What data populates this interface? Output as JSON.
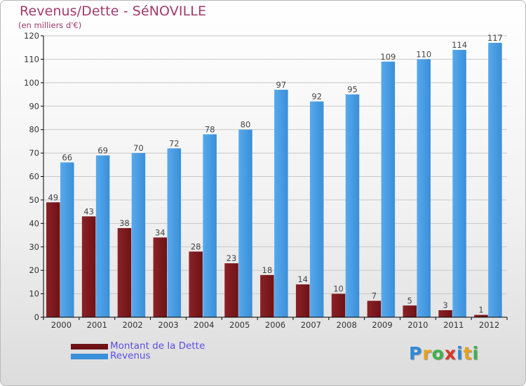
{
  "title": "Revenus/Dette - SéNOVILLE",
  "subtitle": "(en milliers d'€)",
  "colors": {
    "debt": "#6e1216",
    "debt_light": "#8a2227",
    "revenue": "#3a8fd8",
    "revenue_light": "#58a9ec",
    "title": "#a23a6c",
    "legend_text": "#5b4ee0",
    "axis": "#000000",
    "grid": "#c8c8c8"
  },
  "legend": {
    "debt_label": "Montant de la Dette",
    "revenue_label": "Revenus"
  },
  "logo": {
    "letters": [
      "P",
      "r",
      "o",
      "x",
      "i",
      "t",
      "i"
    ],
    "colors": [
      "#2e8ad8",
      "#e8a21a",
      "#3fb24a",
      "#d9362b",
      "#2e8ad8",
      "#e8a21a",
      "#3fb24a"
    ]
  },
  "chart_data": {
    "type": "bar",
    "categories": [
      "2000",
      "2001",
      "2002",
      "2003",
      "2004",
      "2005",
      "2006",
      "2007",
      "2008",
      "2009",
      "2010",
      "2011",
      "2012"
    ],
    "series": [
      {
        "name": "Montant de la Dette",
        "values": [
          49,
          43,
          38,
          34,
          28,
          23,
          18,
          14,
          10,
          7,
          5,
          3,
          1
        ]
      },
      {
        "name": "Revenus",
        "values": [
          66,
          69,
          70,
          72,
          78,
          80,
          97,
          92,
          95,
          109,
          110,
          114,
          117
        ]
      }
    ],
    "ylim": [
      0,
      120
    ],
    "yticks": [
      0,
      10,
      20,
      30,
      40,
      50,
      60,
      70,
      80,
      90,
      100,
      110,
      120
    ],
    "grid": true,
    "legend_position": "bottom-left"
  }
}
